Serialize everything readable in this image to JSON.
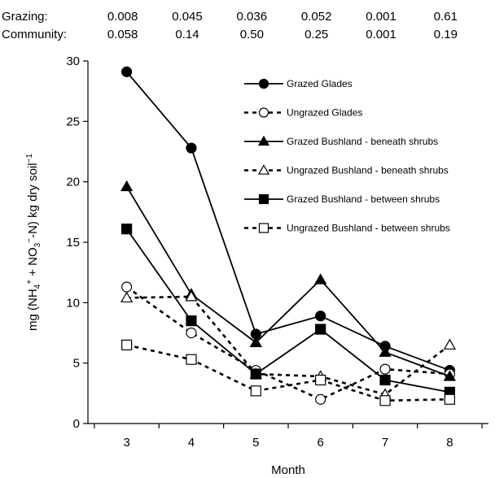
{
  "pvalues": {
    "rows": [
      {
        "label": "Grazing:",
        "values": [
          "0.008",
          "0.045",
          "0.036",
          "0.052",
          "0.001",
          "0.61"
        ]
      },
      {
        "label": "Community:",
        "values": [
          "0.058",
          "0.14",
          "0.50",
          "0.25",
          "0.001",
          "0.19"
        ]
      }
    ]
  },
  "chart_data": {
    "type": "line",
    "title": "",
    "xlabel": "Month",
    "ylabel": "mg (NH4+ + NO3−-N) kg dry soil−1",
    "ylabel_parts": {
      "a": "mg (NH",
      "b": "4",
      "c": "+",
      "d": " + NO",
      "e": "3",
      "f": "−",
      "g": "-N) kg dry soil",
      "h": "−1"
    },
    "x": [
      3,
      4,
      5,
      6,
      7,
      8
    ],
    "xlim": [
      2.4,
      8.6
    ],
    "ylim": [
      0,
      30
    ],
    "yticks": [
      0,
      5,
      10,
      15,
      20,
      25,
      30
    ],
    "grid": false,
    "legend_position": "top-right",
    "series": [
      {
        "name": "Grazed Glades",
        "marker": "circle",
        "fill": "filled",
        "dash": "solid",
        "values": [
          29.1,
          22.8,
          7.4,
          8.9,
          6.4,
          4.4
        ]
      },
      {
        "name": "Ungrazed Glades",
        "marker": "circle",
        "fill": "open",
        "dash": "dashed",
        "values": [
          11.3,
          7.5,
          4.4,
          2.0,
          4.5,
          4.1
        ]
      },
      {
        "name": "Grazed Bushland - beneath shrubs",
        "marker": "triangle",
        "fill": "filled",
        "dash": "solid",
        "values": [
          19.6,
          10.7,
          6.7,
          11.9,
          5.9,
          3.9
        ]
      },
      {
        "name": "Ungrazed Bushland - beneath shrubs",
        "marker": "triangle",
        "fill": "open",
        "dash": "dashed",
        "values": [
          10.4,
          10.5,
          4.1,
          3.9,
          2.4,
          6.5
        ]
      },
      {
        "name": "Grazed Bushland - between shrubs",
        "marker": "square",
        "fill": "filled",
        "dash": "solid",
        "values": [
          16.1,
          8.5,
          4.1,
          7.8,
          3.6,
          2.6
        ]
      },
      {
        "name": "Ungrazed Bushland - between shrubs",
        "marker": "square",
        "fill": "open",
        "dash": "dashed",
        "values": [
          6.5,
          5.3,
          2.7,
          3.6,
          1.9,
          2.0
        ]
      }
    ]
  }
}
